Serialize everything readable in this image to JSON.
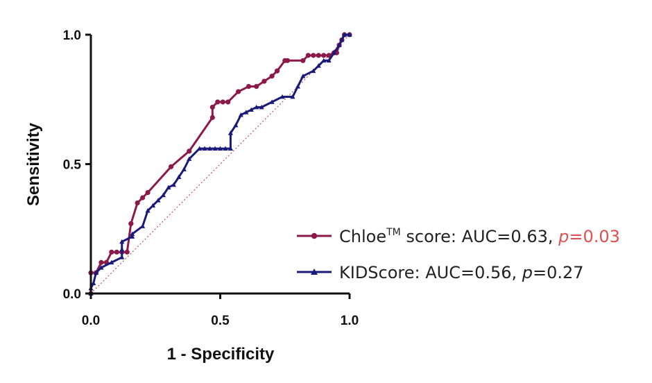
{
  "chart_data": {
    "type": "line",
    "title": "",
    "xlabel": "1 - Specificity",
    "ylabel": "Sensitivity",
    "xlim": [
      0,
      1
    ],
    "ylim": [
      0,
      1
    ],
    "xticks": [
      "0.0",
      "0.5",
      "1.0"
    ],
    "yticks": [
      "0.0",
      "0.5",
      "1.0"
    ],
    "grid": false,
    "legend_position": "bottom-right",
    "reference_line": {
      "x": [
        0,
        1
      ],
      "y": [
        0,
        1
      ],
      "style": "dotted",
      "color": "#c0504d"
    },
    "series": [
      {
        "name": "Chloe score",
        "legend": {
          "pre": "Chloe",
          "sup": "TM",
          "mid": " score: AUC=0.63, ",
          "p_label": "p",
          "p_value": "=0.03"
        },
        "color": "#8b1a4a",
        "p_color": "#e05050",
        "marker": "circle",
        "x": [
          0,
          0,
          0.02,
          0.04,
          0.06,
          0.08,
          0.1,
          0.12,
          0.14,
          0.155,
          0.155,
          0.18,
          0.2,
          0.22,
          0.31,
          0.38,
          0.47,
          0.47,
          0.49,
          0.51,
          0.53,
          0.57,
          0.61,
          0.64,
          0.67,
          0.7,
          0.72,
          0.75,
          0.76,
          0.82,
          0.84,
          0.86,
          0.88,
          0.9,
          0.92,
          0.94,
          0.95,
          0.96,
          0.97,
          0.98,
          1.0
        ],
        "y": [
          0,
          0.08,
          0.08,
          0.12,
          0.12,
          0.16,
          0.16,
          0.16,
          0.16,
          0.27,
          0.27,
          0.35,
          0.37,
          0.39,
          0.49,
          0.55,
          0.68,
          0.72,
          0.74,
          0.74,
          0.74,
          0.78,
          0.8,
          0.8,
          0.82,
          0.84,
          0.86,
          0.9,
          0.9,
          0.9,
          0.92,
          0.92,
          0.92,
          0.92,
          0.92,
          0.93,
          0.93,
          0.96,
          0.98,
          1.0,
          1.0
        ]
      },
      {
        "name": "KIDScore",
        "legend": {
          "pre": "KIDScore",
          "sup": "",
          "mid": ": AUC=0.56, ",
          "p_label": "p",
          "p_value": "=0.27"
        },
        "color": "#1a1a7a",
        "p_color": "#222222",
        "marker": "triangle",
        "x": [
          0,
          0,
          0.01,
          0.02,
          0.04,
          0.08,
          0.12,
          0.12,
          0.12,
          0.16,
          0.16,
          0.2,
          0.22,
          0.24,
          0.26,
          0.28,
          0.3,
          0.32,
          0.34,
          0.36,
          0.38,
          0.42,
          0.44,
          0.46,
          0.48,
          0.5,
          0.52,
          0.54,
          0.54,
          0.56,
          0.58,
          0.6,
          0.62,
          0.64,
          0.66,
          0.7,
          0.74,
          0.78,
          0.8,
          0.82,
          0.86,
          0.88,
          0.9,
          0.92,
          0.94,
          0.96,
          0.97,
          0.98,
          1.0
        ],
        "y": [
          0,
          0.02,
          0.04,
          0.08,
          0.1,
          0.12,
          0.14,
          0.17,
          0.2,
          0.22,
          0.23,
          0.26,
          0.32,
          0.34,
          0.36,
          0.38,
          0.41,
          0.42,
          0.45,
          0.48,
          0.52,
          0.56,
          0.56,
          0.56,
          0.56,
          0.56,
          0.56,
          0.56,
          0.62,
          0.65,
          0.69,
          0.7,
          0.71,
          0.72,
          0.72,
          0.74,
          0.76,
          0.76,
          0.8,
          0.84,
          0.86,
          0.88,
          0.9,
          0.9,
          0.93,
          0.96,
          0.98,
          1.0,
          1.0
        ]
      }
    ]
  }
}
